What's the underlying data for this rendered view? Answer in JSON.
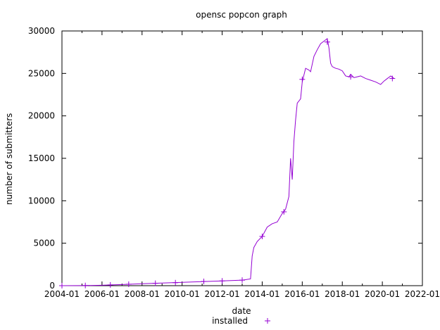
{
  "chart_data": {
    "type": "line",
    "title": "opensc popcon graph",
    "xlabel": "date",
    "ylabel": "number of submitters",
    "xlim": [
      "2004-01",
      "2022-01"
    ],
    "ylim": [
      0,
      30000
    ],
    "x_ticks": [
      "2004-01",
      "2006-01",
      "2008-01",
      "2010-01",
      "2012-01",
      "2014-01",
      "2016-01",
      "2018-01",
      "2020-01",
      "2022-01"
    ],
    "y_ticks": [
      0,
      5000,
      10000,
      15000,
      20000,
      25000,
      30000
    ],
    "grid": false,
    "legend_position": "bottom",
    "series": [
      {
        "name": "installed",
        "color": "#9400d3",
        "marker": "plus",
        "x": [
          "2004-01",
          "2005-01",
          "2006-01",
          "2007-01",
          "2008-01",
          "2009-01",
          "2010-01",
          "2011-01",
          "2012-01",
          "2013-01",
          "2013-03",
          "2013-06",
          "2013-07",
          "2013-08",
          "2013-10",
          "2014-01",
          "2014-04",
          "2014-07",
          "2014-10",
          "2015-01",
          "2015-03",
          "2015-05",
          "2015-06",
          "2015-07",
          "2015-08",
          "2015-09",
          "2015-10",
          "2015-12",
          "2016-01",
          "2016-03",
          "2016-05",
          "2016-06",
          "2016-08",
          "2016-10",
          "2016-12",
          "2017-02",
          "2017-04",
          "2017-05",
          "2017-06",
          "2017-07",
          "2017-09",
          "2017-11",
          "2018-01",
          "2018-03",
          "2018-05",
          "2018-06",
          "2018-08",
          "2018-10",
          "2018-12",
          "2019-03",
          "2019-06",
          "2019-09",
          "2019-12",
          "2020-02",
          "2020-04",
          "2020-06",
          "2020-08"
        ],
        "values": [
          0,
          10,
          50,
          130,
          230,
          310,
          390,
          480,
          560,
          650,
          700,
          800,
          3500,
          4500,
          5200,
          5800,
          6900,
          7300,
          7500,
          8500,
          9000,
          10500,
          15000,
          12500,
          17000,
          19500,
          21500,
          22000,
          24000,
          25600,
          25400,
          25200,
          27000,
          27800,
          28500,
          28800,
          29100,
          28000,
          26200,
          25800,
          25600,
          25500,
          25300,
          24700,
          24600,
          24900,
          24500,
          24600,
          24700,
          24400,
          24200,
          24000,
          23700,
          24100,
          24400,
          24700,
          24400
        ]
      }
    ],
    "markers": {
      "x": [
        "2004-01",
        "2005-03",
        "2006-06",
        "2007-05",
        "2008-09",
        "2009-09",
        "2011-02",
        "2012-01",
        "2013-01",
        "2014-01",
        "2015-02",
        "2016-01",
        "2017-04",
        "2018-06",
        "2020-07"
      ],
      "values": [
        0,
        20,
        90,
        170,
        280,
        350,
        500,
        560,
        650,
        5800,
        8700,
        24300,
        28700,
        24600,
        24400
      ]
    }
  }
}
